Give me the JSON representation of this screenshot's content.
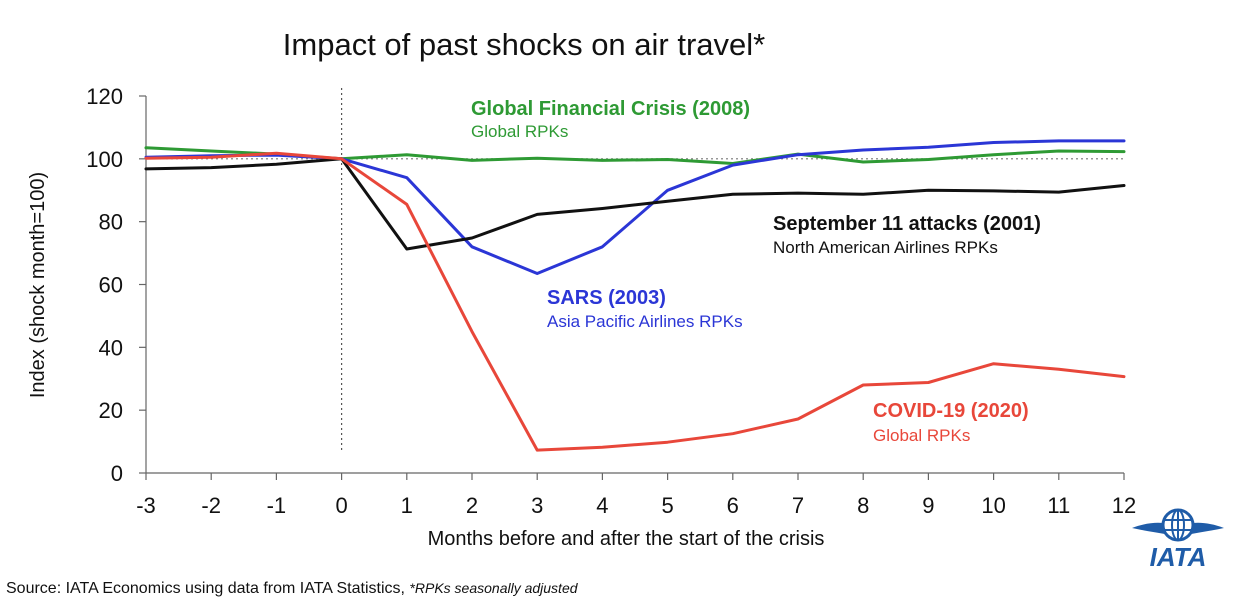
{
  "chart_data": {
    "type": "line",
    "title": "Impact of past shocks on air travel*",
    "xlabel": "Months before and after the start of the crisis",
    "ylabel": "Index (shock month=100)",
    "x": [
      -3,
      -2,
      -1,
      0,
      1,
      2,
      3,
      4,
      5,
      6,
      7,
      8,
      9,
      10,
      11,
      12
    ],
    "xlim": [
      -3,
      12
    ],
    "ylim": [
      0,
      120
    ],
    "yticks": [
      0,
      20,
      40,
      60,
      80,
      100,
      120
    ],
    "reference_line": 100,
    "shock_marker_x": 0,
    "series": [
      {
        "name": "Global Financial Crisis (2008)",
        "subtitle": "Global RPKs",
        "color": "#2e9a34",
        "values": [
          103.5,
          102.5,
          101.5,
          100,
          101.3,
          99.5,
          100.2,
          99.5,
          99.8,
          98.5,
          101.5,
          99.0,
          99.8,
          101.3,
          102.5,
          102.3
        ]
      },
      {
        "name": "SARS (2003)",
        "subtitle": "Asia Pacific Airlines RPKs",
        "color": "#2b36d6",
        "values": [
          100.5,
          101.0,
          101.2,
          100,
          94.0,
          72.0,
          63.5,
          72.0,
          90.0,
          98.0,
          101.3,
          102.8,
          103.7,
          105.2,
          105.7,
          105.7
        ]
      },
      {
        "name": "September 11 attacks (2001)",
        "subtitle": "North American Airlines RPKs",
        "color": "#111111",
        "values": [
          96.8,
          97.2,
          98.3,
          100,
          71.3,
          74.8,
          82.3,
          84.2,
          86.5,
          88.7,
          89.1,
          88.7,
          90.0,
          89.8,
          89.4,
          91.5
        ]
      },
      {
        "name": "COVID-19 (2020)",
        "subtitle": "Global RPKs",
        "color": "#e8473a",
        "values": [
          100.2,
          100.5,
          101.8,
          100,
          85.5,
          45.0,
          7.3,
          8.2,
          9.8,
          12.5,
          17.2,
          28.0,
          28.8,
          34.8,
          33.0,
          30.7
        ]
      }
    ]
  },
  "source": {
    "text": "Source: IATA Economics using data from IATA Statistics,",
    "note": "*RPKs seasonally adjusted"
  },
  "logo": {
    "text": "IATA",
    "color": "#1f5ca8"
  }
}
